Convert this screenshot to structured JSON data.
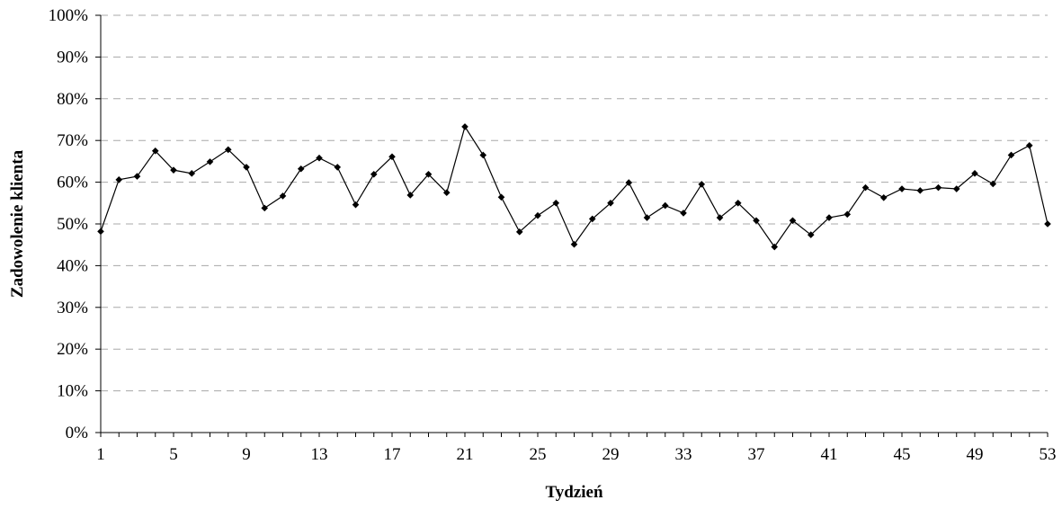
{
  "chart_data": {
    "type": "line",
    "title": "",
    "xlabel": "Tydzień",
    "ylabel": "Zadowolenie klienta",
    "x": [
      1,
      2,
      3,
      4,
      5,
      6,
      7,
      8,
      9,
      10,
      11,
      12,
      13,
      14,
      15,
      16,
      17,
      18,
      19,
      20,
      21,
      22,
      23,
      24,
      25,
      26,
      27,
      28,
      29,
      30,
      31,
      32,
      33,
      34,
      35,
      36,
      37,
      38,
      39,
      40,
      41,
      42,
      43,
      44,
      45,
      46,
      47,
      48,
      49,
      50,
      51,
      52,
      53
    ],
    "x_tick_labels": [
      "1",
      "5",
      "9",
      "13",
      "17",
      "21",
      "25",
      "29",
      "33",
      "37",
      "41",
      "45",
      "49",
      "53"
    ],
    "x_ticks": [
      1,
      5,
      9,
      13,
      17,
      21,
      25,
      29,
      33,
      37,
      41,
      45,
      49,
      53
    ],
    "xlim": [
      1,
      53
    ],
    "ylim": [
      0,
      100
    ],
    "y_ticks": [
      0,
      10,
      20,
      30,
      40,
      50,
      60,
      70,
      80,
      90,
      100
    ],
    "y_tick_labels": [
      "0%",
      "10%",
      "20%",
      "30%",
      "40%",
      "50%",
      "60%",
      "70%",
      "80%",
      "90%",
      "100%"
    ],
    "grid": "horizontal-dashed",
    "legend": "none",
    "series": [
      {
        "color": "#000000",
        "marker": "diamond",
        "values": [
          48.2,
          60.6,
          61.4,
          67.5,
          62.9,
          62.1,
          64.9,
          67.8,
          63.6,
          53.8,
          56.7,
          63.2,
          65.8,
          63.6,
          54.6,
          61.9,
          66.1,
          56.9,
          61.9,
          57.5,
          73.3,
          66.5,
          56.4,
          48.1,
          52.0,
          55.0,
          45.1,
          51.2,
          55.0,
          59.9,
          51.5,
          54.4,
          52.6,
          59.5,
          51.5,
          55.0,
          50.8,
          44.5,
          50.8,
          47.4,
          51.5,
          52.3,
          58.7,
          56.3,
          58.4,
          58.0,
          58.7,
          58.4,
          62.1,
          59.6,
          66.5,
          68.8,
          50.0
        ]
      }
    ]
  }
}
